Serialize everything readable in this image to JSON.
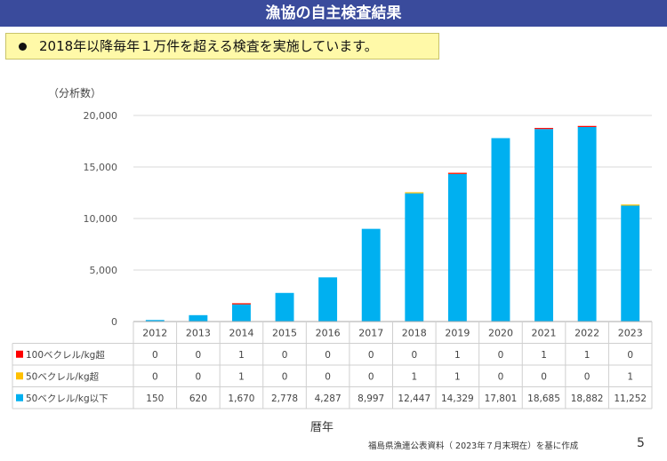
{
  "header": {
    "title": "漁協の自主検査結果",
    "headline": "2018年以降毎年１万件を超える検査を実施しています。"
  },
  "chart_data": {
    "type": "bar",
    "stacked": true,
    "ylabel": "（分析数）",
    "xlabel": "暦年",
    "ylim": [
      0,
      20000
    ],
    "yticks": [
      0,
      5000,
      10000,
      15000,
      20000
    ],
    "ytick_labels": [
      "0",
      "5,000",
      "10,000",
      "15,000",
      "20,000"
    ],
    "grid": true,
    "categories": [
      "2012",
      "2013",
      "2014",
      "2015",
      "2016",
      "2017",
      "2018",
      "2019",
      "2020",
      "2021",
      "2022",
      "2023"
    ],
    "series": [
      {
        "name": "50ベクレル/kg以下",
        "color": "#00b0f0",
        "values": [
          150,
          620,
          1670,
          2778,
          4287,
          8997,
          12447,
          14329,
          17801,
          18685,
          18882,
          11252
        ],
        "labels": [
          "150",
          "620",
          "1,670",
          "2,778",
          "4,287",
          "8,997",
          "12,447",
          "14,329",
          "17,801",
          "18,685",
          "18,882",
          "11,252"
        ]
      },
      {
        "name": "50ベクレル/kg超",
        "color": "#ffc000",
        "values": [
          0,
          0,
          1,
          0,
          0,
          0,
          1,
          1,
          0,
          0,
          0,
          1
        ],
        "labels": [
          "0",
          "0",
          "1",
          "0",
          "0",
          "0",
          "1",
          "1",
          "0",
          "0",
          "0",
          "1"
        ]
      },
      {
        "name": "100ベクレル/kg超",
        "color": "#ff0000",
        "values": [
          0,
          0,
          1,
          0,
          0,
          0,
          0,
          1,
          0,
          1,
          1,
          0
        ],
        "labels": [
          "0",
          "0",
          "1",
          "0",
          "0",
          "0",
          "0",
          "1",
          "0",
          "1",
          "1",
          "0"
        ]
      }
    ],
    "table_row_order": [
      2,
      1,
      0
    ]
  },
  "footer": {
    "source": "福島県漁連公表資料（ 2023年７月末現在）を基に作成",
    "page_number": "5"
  }
}
